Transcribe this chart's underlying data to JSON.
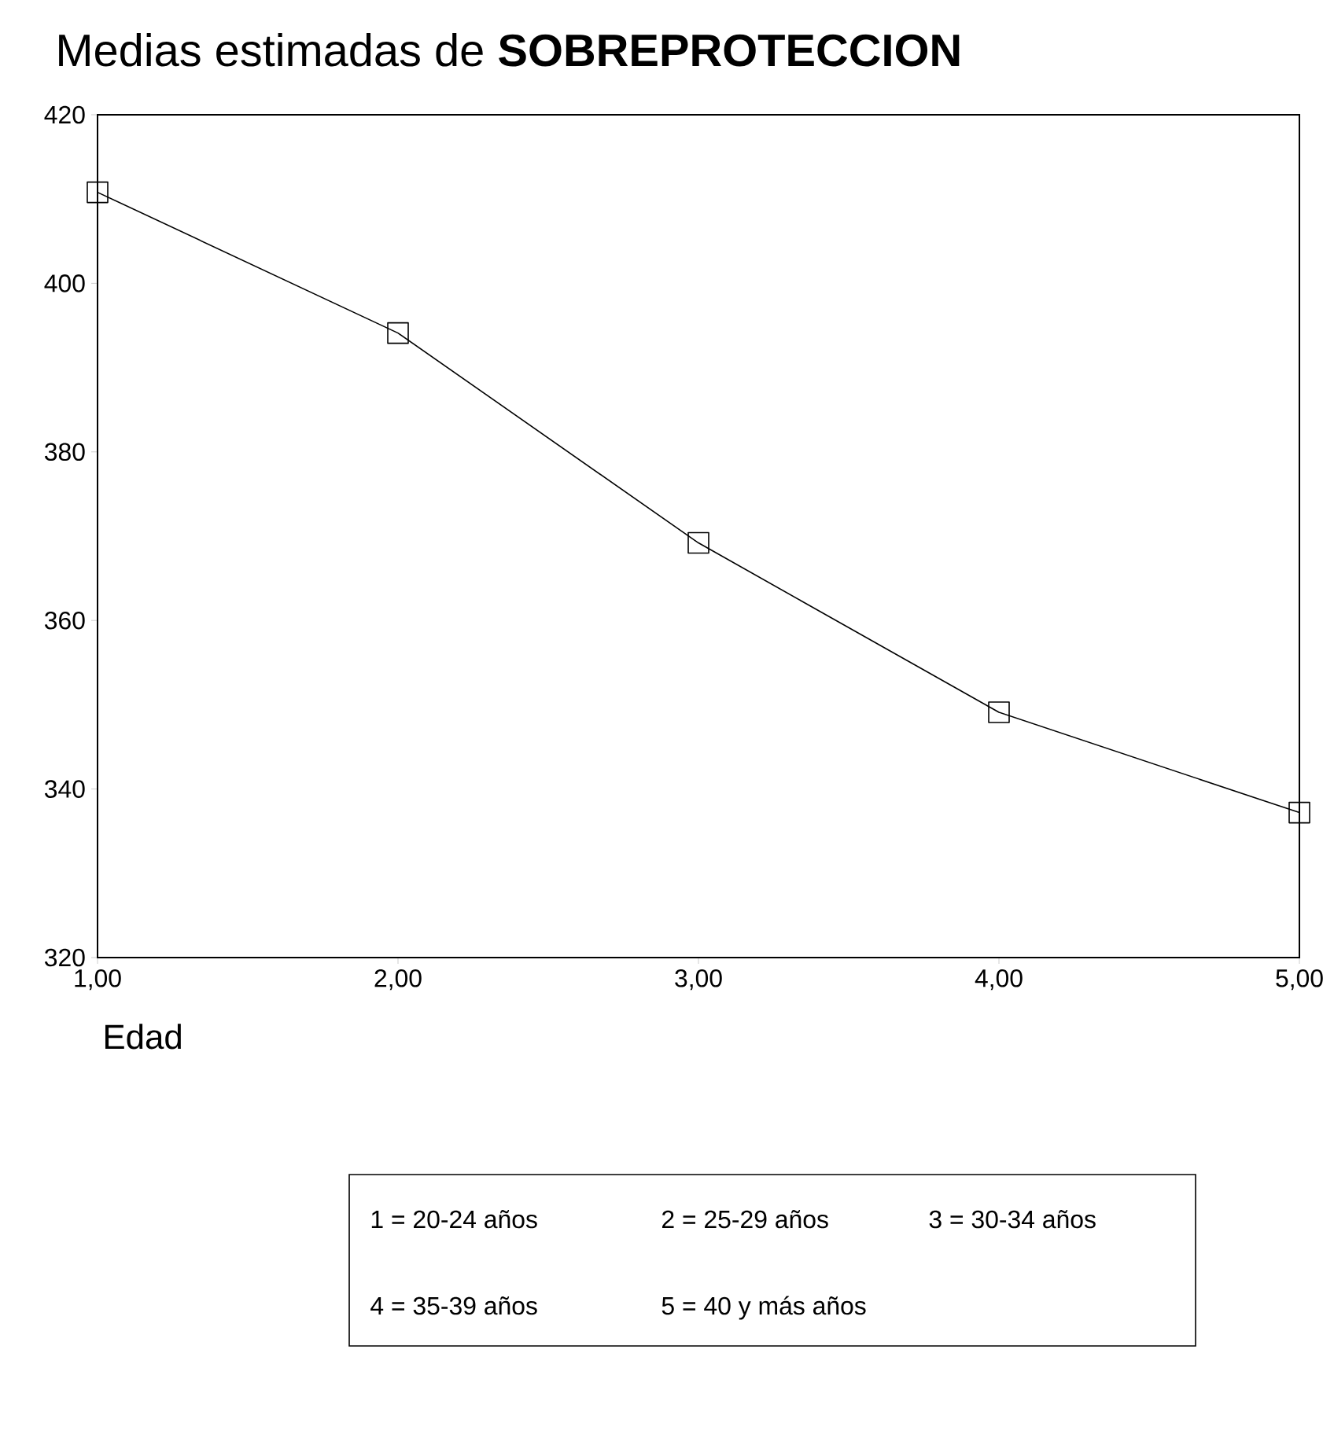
{
  "chart_data": {
    "type": "line",
    "title": "Medias  estimadas de **SOBREPROTECCION**",
    "xlabel": "Edad",
    "x": [
      1,
      2,
      3,
      4,
      5
    ],
    "series": [
      {
        "color": "#000000",
        "values": [
          410.8,
          394.1,
          369.2,
          349.1,
          337.2
        ]
      }
    ],
    "xlim": [
      1,
      5
    ],
    "ylim": [
      320,
      420
    ],
    "xticks": [
      {
        "value": 1,
        "label": "1,00"
      },
      {
        "value": 2,
        "label": "2,00"
      },
      {
        "value": 3,
        "label": "3,00"
      },
      {
        "value": 4,
        "label": "4,00"
      },
      {
        "value": 5,
        "label": "5,00"
      }
    ],
    "yticks": [
      320,
      340,
      360,
      380,
      400,
      420
    ],
    "marker": "square",
    "line_style": "solid",
    "annotations": [
      "1 = 20-24 años",
      "2 = 25-29 años",
      "3 = 30-34 años",
      "4 = 35-39 años",
      "5 = 40 y más años"
    ]
  }
}
